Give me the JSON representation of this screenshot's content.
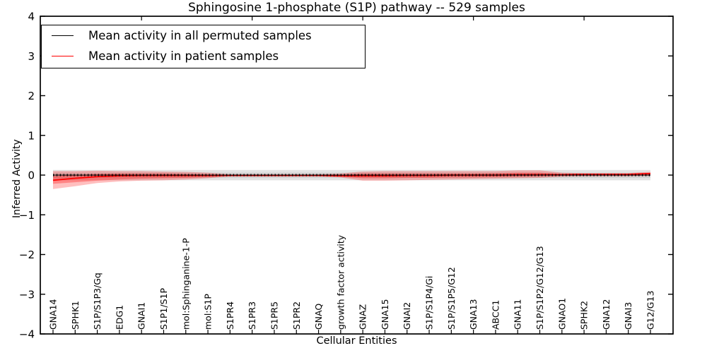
{
  "title": "Sphingosine 1-phosphate (S1P) pathway -- 529 samples",
  "axes": {
    "xlabel": "Cellular Entities",
    "ylabel": "Inferred Activity",
    "ytick_labels": [
      "4",
      "3",
      "2",
      "1",
      "0",
      "−1",
      "−2",
      "−3",
      "−4"
    ],
    "ylim": [
      -4,
      4
    ]
  },
  "legend": {
    "items": [
      {
        "label": "Mean activity in all permuted samples",
        "color": "#000000"
      },
      {
        "label": "Mean activity in patient samples",
        "color": "#ff0000"
      }
    ],
    "position": "upper left"
  },
  "colors": {
    "frame": "#000000",
    "permuted_line": "#000000",
    "patient_line": "#ff0000",
    "permuted_band": "#bdbdbd",
    "patient_band": "#ff0000"
  },
  "chart_data": {
    "type": "line",
    "title": "Sphingosine 1-phosphate (S1P) pathway -- 529 samples",
    "xlabel": "Cellular Entities",
    "ylabel": "Inferred Activity",
    "ylim": [
      -4,
      4
    ],
    "grid": false,
    "legend_position": "upper left",
    "categories": [
      "GNA14",
      "SPHK1",
      "S1P/S1P3/Gq",
      "EDG1",
      "GNAI1",
      "S1P1/S1P",
      "mol:Sphinganine-1-P",
      "mol:S1P",
      "S1PR4",
      "S1PR3",
      "S1PR5",
      "S1PR2",
      "GNAQ",
      "growth factor activity",
      "GNAZ",
      "GNA15",
      "GNAI2",
      "S1P/S1P4/Gi",
      "S1P/S1P5/G12",
      "GNA13",
      "ABCC1",
      "GNA11",
      "S1P/S1P2/G12/G13",
      "GNAO1",
      "SPHK2",
      "GNA12",
      "GNAI3",
      "G12/G13"
    ],
    "series": [
      {
        "name": "Mean activity in all permuted samples",
        "color": "#000000",
        "style": "solid-with-tick-markers",
        "values": [
          0,
          0,
          0,
          0,
          0,
          0,
          0,
          0,
          0,
          0,
          0,
          0,
          0,
          0,
          0,
          0,
          0,
          0,
          0,
          0,
          0,
          0,
          0,
          0,
          0,
          0,
          0,
          0
        ]
      },
      {
        "name": "Mean activity in patient samples",
        "color": "#ff0000",
        "style": "solid",
        "values": [
          -0.13,
          -0.08,
          -0.04,
          -0.02,
          -0.01,
          -0.01,
          -0.01,
          -0.01,
          -0.01,
          -0.01,
          -0.01,
          -0.01,
          -0.01,
          -0.02,
          -0.02,
          -0.02,
          -0.01,
          -0.01,
          0,
          0,
          0,
          0.01,
          0.01,
          0.01,
          0.02,
          0.02,
          0.02,
          0.04
        ]
      }
    ],
    "bands": [
      {
        "name": "permuted-spread-outer",
        "color": "#c0c0c0",
        "opacity": 0.45,
        "upper": [
          0.13,
          0.13,
          0.13,
          0.13,
          0.13,
          0.13,
          0.13,
          0.13,
          0.13,
          0.13,
          0.13,
          0.13,
          0.13,
          0.13,
          0.13,
          0.13,
          0.13,
          0.13,
          0.13,
          0.13,
          0.13,
          0.13,
          0.13,
          0.13,
          0.13,
          0.13,
          0.13,
          0.13
        ],
        "lower": [
          -0.13,
          -0.13,
          -0.13,
          -0.13,
          -0.13,
          -0.13,
          -0.13,
          -0.13,
          -0.13,
          -0.13,
          -0.13,
          -0.13,
          -0.13,
          -0.13,
          -0.13,
          -0.13,
          -0.13,
          -0.13,
          -0.13,
          -0.13,
          -0.13,
          -0.13,
          -0.13,
          -0.13,
          -0.13,
          -0.13,
          -0.13,
          -0.13
        ],
        "legend": null
      },
      {
        "name": "permuted-spread-inner",
        "color": "#b0b0b0",
        "opacity": 0.35,
        "upper": [
          0.06,
          0.06,
          0.06,
          0.06,
          0.06,
          0.06,
          0.06,
          0.06,
          0.06,
          0.06,
          0.06,
          0.06,
          0.06,
          0.06,
          0.06,
          0.06,
          0.06,
          0.06,
          0.06,
          0.06,
          0.06,
          0.06,
          0.06,
          0.06,
          0.06,
          0.06,
          0.06,
          0.06
        ],
        "lower": [
          -0.07,
          -0.07,
          -0.07,
          -0.07,
          -0.07,
          -0.07,
          -0.07,
          -0.07,
          -0.07,
          -0.07,
          -0.07,
          -0.07,
          -0.07,
          -0.07,
          -0.07,
          -0.07,
          -0.07,
          -0.07,
          -0.07,
          -0.07,
          -0.07,
          -0.07,
          -0.07,
          -0.07,
          -0.07,
          -0.07,
          -0.07,
          -0.07
        ],
        "legend": null
      },
      {
        "name": "patient-spread-outer",
        "color": "#ff0000",
        "opacity": 0.25,
        "upper": [
          0.1,
          0.1,
          0.11,
          0.1,
          0.1,
          0.09,
          0.08,
          0.06,
          0.02,
          0.02,
          0.02,
          0.02,
          0.02,
          0.04,
          0.09,
          0.1,
          0.1,
          0.1,
          0.1,
          0.1,
          0.1,
          0.12,
          0.12,
          0.06,
          0.05,
          0.05,
          0.05,
          0.08
        ],
        "lower": [
          -0.35,
          -0.28,
          -0.2,
          -0.16,
          -0.14,
          -0.13,
          -0.11,
          -0.08,
          -0.03,
          -0.03,
          -0.03,
          -0.03,
          -0.03,
          -0.06,
          -0.14,
          -0.14,
          -0.13,
          -0.12,
          -0.11,
          -0.1,
          -0.09,
          -0.08,
          -0.07,
          -0.04,
          -0.03,
          -0.03,
          -0.03,
          -0.02
        ],
        "legend": null
      },
      {
        "name": "patient-spread-inner",
        "color": "#ff0000",
        "opacity": 0.3,
        "upper": [
          -0.02,
          0.0,
          0.03,
          0.04,
          0.04,
          0.04,
          0.03,
          0.02,
          0.01,
          0.01,
          0.01,
          0.01,
          0.01,
          0.01,
          0.04,
          0.04,
          0.04,
          0.04,
          0.04,
          0.04,
          0.05,
          0.06,
          0.06,
          0.03,
          0.03,
          0.03,
          0.03,
          0.05
        ],
        "lower": [
          -0.22,
          -0.18,
          -0.14,
          -0.11,
          -0.09,
          -0.08,
          -0.07,
          -0.05,
          -0.02,
          -0.02,
          -0.02,
          -0.02,
          -0.02,
          -0.04,
          -0.08,
          -0.08,
          -0.07,
          -0.07,
          -0.06,
          -0.06,
          -0.05,
          -0.04,
          -0.03,
          -0.02,
          -0.01,
          -0.01,
          -0.01,
          0.0
        ],
        "legend": null
      }
    ]
  }
}
